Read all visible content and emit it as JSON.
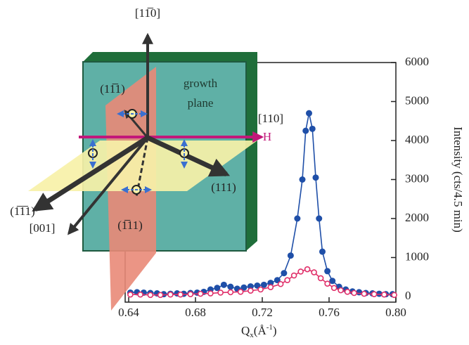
{
  "chart_data": {
    "type": "line",
    "xlabel": [
      "Q",
      "x",
      "(Å",
      "-1",
      ")"
    ],
    "ylabel": "Intensity (cts/4.5 min)",
    "xlim": [
      0.64,
      0.8
    ],
    "xticks": [
      0.64,
      0.68,
      0.72,
      0.76,
      {
        "value": 0.8,
        "label": "0.80"
      }
    ],
    "ylim": [
      0,
      6000
    ],
    "yticks": [
      0,
      1000,
      2000,
      3000,
      4000,
      5000,
      6000
    ],
    "series": [
      {
        "color": "#1f4fa8",
        "marker": "filled",
        "x": [
          0.641,
          0.645,
          0.649,
          0.653,
          0.657,
          0.661,
          0.665,
          0.669,
          0.673,
          0.677,
          0.681,
          0.685,
          0.689,
          0.693,
          0.697,
          0.701,
          0.705,
          0.709,
          0.713,
          0.717,
          0.721,
          0.725,
          0.729,
          0.733,
          0.737,
          0.741,
          0.744,
          0.746,
          0.748,
          0.75,
          0.752,
          0.754,
          0.756,
          0.759,
          0.762,
          0.766,
          0.77,
          0.774,
          0.778,
          0.782,
          0.786,
          0.79,
          0.794,
          0.798
        ],
        "values": [
          100,
          110,
          100,
          90,
          80,
          60,
          70,
          80,
          70,
          90,
          100,
          120,
          180,
          220,
          300,
          250,
          200,
          230,
          260,
          280,
          300,
          350,
          420,
          600,
          1050,
          2000,
          3000,
          4250,
          4700,
          4300,
          3050,
          2000,
          1150,
          650,
          400,
          250,
          180,
          130,
          110,
          90,
          80,
          70,
          60,
          60
        ]
      },
      {
        "color": "#e0306a",
        "marker": "open",
        "x": [
          0.641,
          0.647,
          0.653,
          0.659,
          0.665,
          0.671,
          0.677,
          0.683,
          0.689,
          0.695,
          0.701,
          0.707,
          0.713,
          0.719,
          0.725,
          0.731,
          0.735,
          0.739,
          0.743,
          0.747,
          0.751,
          0.755,
          0.759,
          0.763,
          0.767,
          0.771,
          0.775,
          0.781,
          0.787,
          0.793,
          0.799
        ],
        "values": [
          50,
          50,
          40,
          40,
          50,
          50,
          60,
          70,
          80,
          100,
          110,
          120,
          150,
          180,
          240,
          320,
          420,
          540,
          640,
          700,
          620,
          470,
          330,
          220,
          160,
          120,
          90,
          70,
          60,
          50,
          40
        ]
      }
    ],
    "annotations": [
      "[11̅0]",
      "(11̅1)",
      "growth",
      "plane",
      "[110]",
      "H",
      "(1̅1̅1)",
      "(111)",
      "[001]",
      "(1̅11)"
    ]
  }
}
